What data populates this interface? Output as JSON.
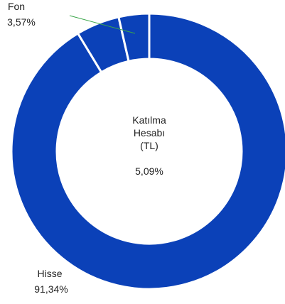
{
  "chart_data": {
    "type": "pie",
    "categories": [
      "Hisse",
      "Katılma Hesabı (TL)",
      "Fon"
    ],
    "values": [
      91.34,
      5.09,
      3.57
    ],
    "value_labels": [
      "91,34%",
      "5,09%",
      "3,57%"
    ],
    "color": "#0b41b8"
  }
}
